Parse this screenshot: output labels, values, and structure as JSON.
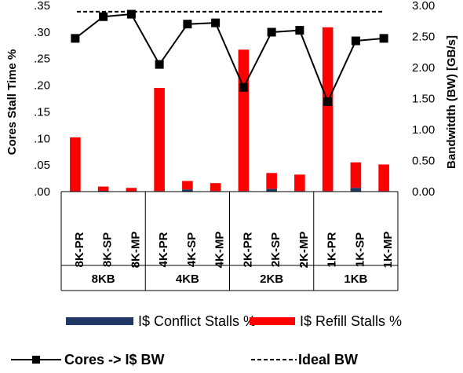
{
  "chart_data": {
    "type": "bar+line",
    "categories": [
      "8K-PR",
      "8K-SP",
      "8K-MP",
      "4K-PR",
      "4K-SP",
      "4K-MP",
      "2K-PR",
      "2K-SP",
      "2K-MP",
      "1K-PR",
      "1K-SP",
      "1K-MP"
    ],
    "groups": [
      "8KB",
      "4KB",
      "2KB",
      "1KB"
    ],
    "y_left": {
      "label": "Cores Stall Time %",
      "ylim": [
        0,
        0.35
      ],
      "ticks": [
        ".00",
        ".05",
        ".10",
        ".15",
        ".20",
        ".25",
        ".30",
        ".35"
      ]
    },
    "y_right": {
      "label": "Bandwitdth (BW) [GB/s]",
      "ylim": [
        0,
        3.0
      ],
      "ticks": [
        "0.00",
        "0.50",
        "1.00",
        "1.50",
        "2.00",
        "2.50",
        "3.00"
      ]
    },
    "series": [
      {
        "name": "I$ Conflict Stalls %",
        "type": "bar",
        "axis": "left",
        "color": "#1f3864",
        "values": [
          0.0005,
          0.0015,
          0.0005,
          0.001,
          0.004,
          0.001,
          0.001,
          0.005,
          0.001,
          0.001,
          0.007,
          0.001
        ]
      },
      {
        "name": "I$ Refill Stalls %",
        "type": "bar",
        "axis": "left",
        "color": "#ff0000",
        "values": [
          0.1015,
          0.008,
          0.0065,
          0.194,
          0.016,
          0.015,
          0.266,
          0.03,
          0.031,
          0.308,
          0.048,
          0.05
        ]
      },
      {
        "name": "Cores -> I$ BW",
        "type": "line",
        "axis": "right",
        "color": "#000000",
        "values": [
          2.47,
          2.82,
          2.86,
          2.05,
          2.7,
          2.72,
          1.68,
          2.57,
          2.6,
          1.45,
          2.43,
          2.47
        ]
      },
      {
        "name": "Ideal BW",
        "type": "dashed-line",
        "axis": "right",
        "color": "#000000",
        "value": 2.9
      }
    ],
    "legend_placement": "bottom",
    "grid": false
  }
}
